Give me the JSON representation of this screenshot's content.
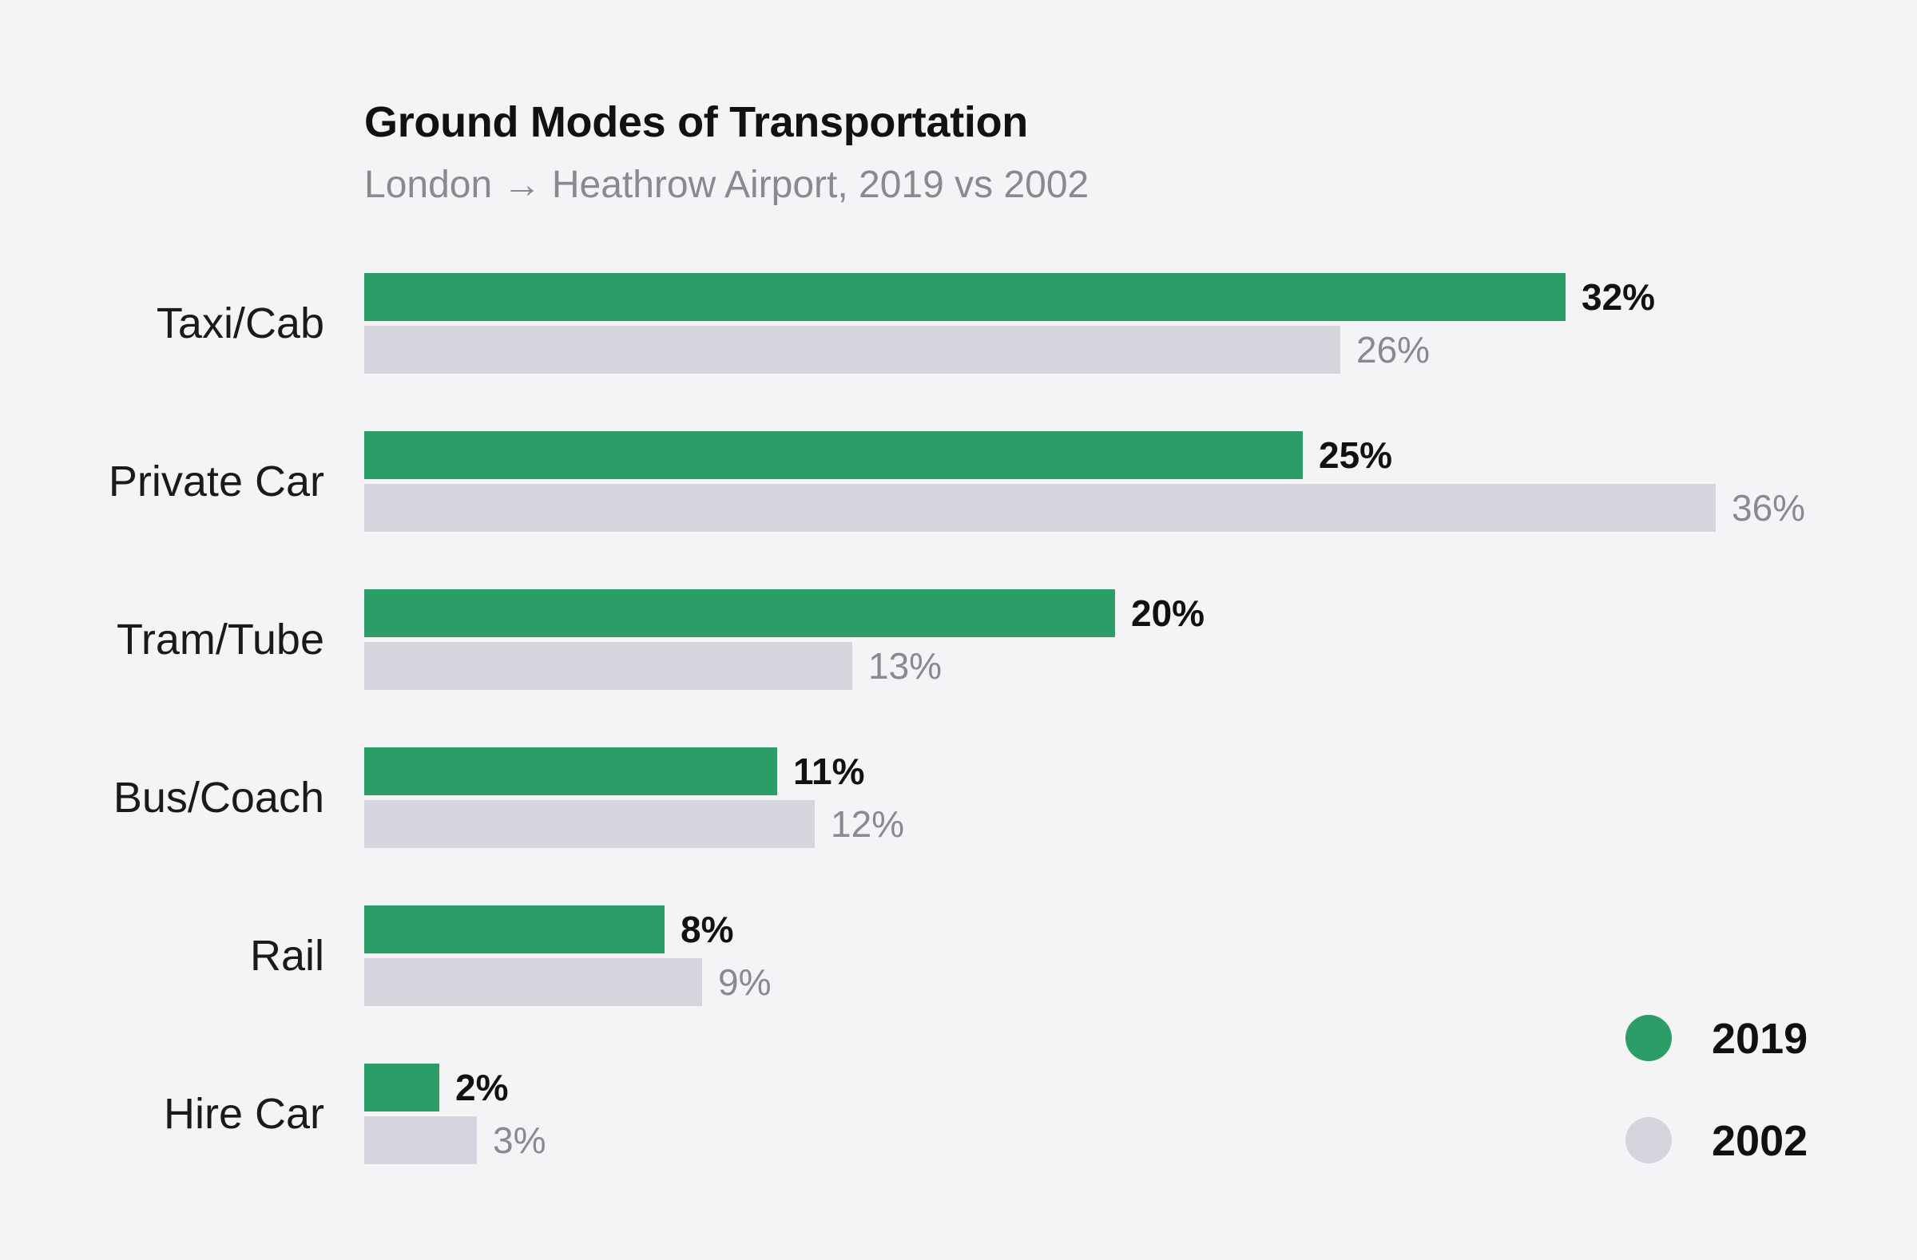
{
  "chart_data": {
    "type": "bar",
    "orientation": "horizontal",
    "title": "Ground Modes of Transportation",
    "subtitle": "London → Heathrow Airport, 2019 vs 2002",
    "categories": [
      "Taxi/Cab",
      "Private Car",
      "Tram/Tube",
      "Bus/Coach",
      "Rail",
      "Hire Car"
    ],
    "series": [
      {
        "name": "2019",
        "color": "#2b9d67",
        "values": [
          32,
          25,
          20,
          11,
          8,
          2
        ],
        "labels": [
          "32%",
          "25%",
          "20%",
          "11%",
          "8%",
          "2%"
        ]
      },
      {
        "name": "2002",
        "color": "#d5d5dd",
        "values": [
          26,
          36,
          13,
          12,
          9,
          3
        ],
        "labels": [
          "26%",
          "36%",
          "13%",
          "12%",
          "9%",
          "3%"
        ]
      }
    ],
    "xlim": [
      0,
      36
    ],
    "grid": false,
    "legend_position": "bottom-right"
  }
}
